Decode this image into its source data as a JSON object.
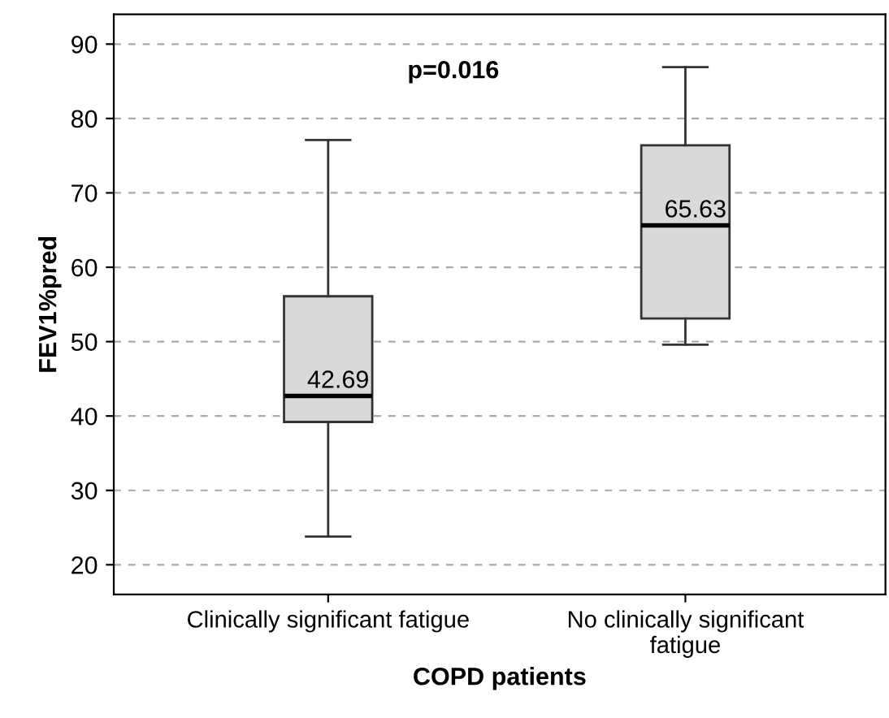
{
  "chart_data": {
    "type": "box",
    "xlabel": "COPD patients",
    "ylabel": "FEV1%pred",
    "categories": [
      "Clinically significant fatigue",
      "No clinically significant\nfatigue"
    ],
    "boxes": [
      {
        "low": 23.8,
        "q1": 39.2,
        "median": 42.69,
        "q3": 56.1,
        "high": 77.1
      },
      {
        "low": 49.6,
        "q1": 53.1,
        "median": 65.63,
        "q3": 76.4,
        "high": 86.9
      }
    ],
    "color": "#d9d9d9",
    "value_labels": [
      "42.69",
      "65.63"
    ],
    "ylim": [
      16,
      94
    ],
    "yticks": [
      20,
      30,
      40,
      50,
      60,
      70,
      80,
      90
    ],
    "grid": "y",
    "annotations": [
      "p=0.016"
    ]
  }
}
